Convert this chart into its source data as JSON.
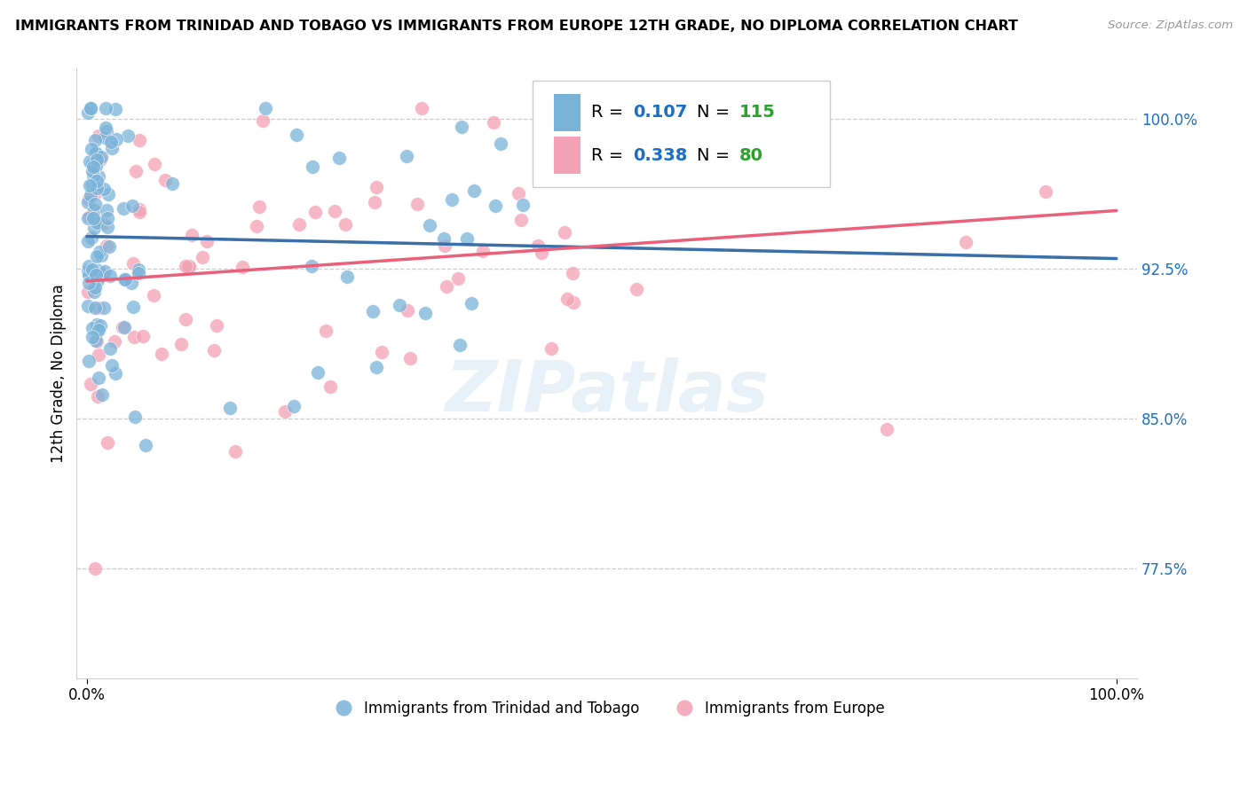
{
  "title": "IMMIGRANTS FROM TRINIDAD AND TOBAGO VS IMMIGRANTS FROM EUROPE 12TH GRADE, NO DIPLOMA CORRELATION CHART",
  "source": "Source: ZipAtlas.com",
  "ylabel": "12th Grade, No Diploma",
  "watermark": "ZIPatlas",
  "legend": {
    "blue_R": "0.107",
    "blue_N": "115",
    "pink_R": "0.338",
    "pink_N": "80"
  },
  "blue_color": "#7ab3d9",
  "pink_color": "#f4a0b5",
  "blue_line_color": "#3a6fa8",
  "pink_line_color": "#e8607a",
  "blue_dashed_color": "#90b8d8",
  "legend_R_color": "#1a6fc4",
  "legend_N_color": "#2ca02c",
  "ytick_vals": [
    0.775,
    0.85,
    0.925,
    1.0
  ],
  "ytick_labels": [
    "77.5%",
    "85.0%",
    "92.5%",
    "100.0%"
  ],
  "xlim": [
    -0.01,
    1.02
  ],
  "ylim": [
    0.72,
    1.025
  ]
}
